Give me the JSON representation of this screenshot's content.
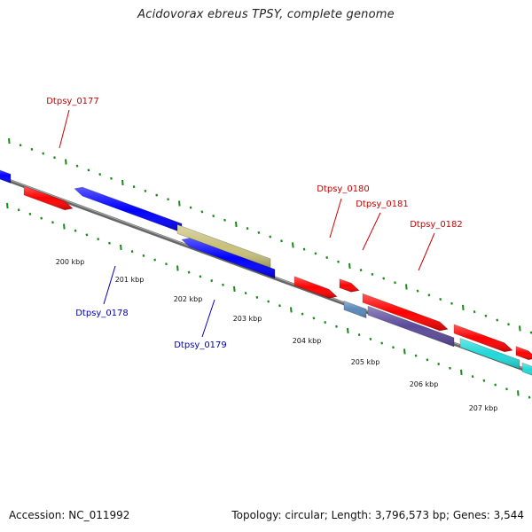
{
  "map": {
    "title": "Acidovorax ebreus TPSY, complete genome",
    "accession": "Accession: NC_011992",
    "summary": "Topology: circular; Length: 3,796,573 bp; Genes: 3,544",
    "colors": {
      "backbone": "#777777",
      "tick": "#1a8a1a",
      "forward_gene": "#ff0000",
      "reverse_gene": "#0000ff",
      "label_forward": "#cc0000",
      "label_reverse": "#0000bb",
      "olive_gene": "#c8c07a",
      "steelblue_gene": "#5a88b8",
      "purple_gene": "#5a4a9a",
      "cyan_gene": "#22d8d8"
    },
    "ruler_labels": [
      "200 kbp",
      "201 kbp",
      "202 kbp",
      "203 kbp",
      "204 kbp",
      "205 kbp",
      "206 kbp",
      "207 kbp"
    ],
    "gene_labels": [
      {
        "id": "Dtpsy_0177",
        "strand": "forward"
      },
      {
        "id": "Dtpsy_0178",
        "strand": "reverse"
      },
      {
        "id": "Dtpsy_0179",
        "strand": "reverse"
      },
      {
        "id": "Dtpsy_0180",
        "strand": "forward"
      },
      {
        "id": "Dtpsy_0181",
        "strand": "forward"
      },
      {
        "id": "Dtpsy_0182",
        "strand": "forward"
      }
    ],
    "genes": [
      {
        "color_key": "reverse_gene",
        "strand": "reverse"
      },
      {
        "color_key": "forward_gene",
        "strand": "forward"
      },
      {
        "color_key": "reverse_gene",
        "strand": "reverse"
      },
      {
        "color_key": "reverse_gene",
        "strand": "reverse"
      },
      {
        "color_key": "olive_gene",
        "strand": "none"
      },
      {
        "color_key": "forward_gene",
        "strand": "forward"
      },
      {
        "color_key": "steelblue_gene",
        "strand": "none"
      },
      {
        "color_key": "purple_gene",
        "strand": "none"
      },
      {
        "color_key": "forward_gene",
        "strand": "forward"
      },
      {
        "color_key": "forward_gene",
        "strand": "forward"
      },
      {
        "color_key": "cyan_gene",
        "strand": "none"
      },
      {
        "color_key": "forward_gene",
        "strand": "forward"
      },
      {
        "color_key": "cyan_gene",
        "strand": "none"
      },
      {
        "color_key": "forward_gene",
        "strand": "forward"
      }
    ]
  }
}
